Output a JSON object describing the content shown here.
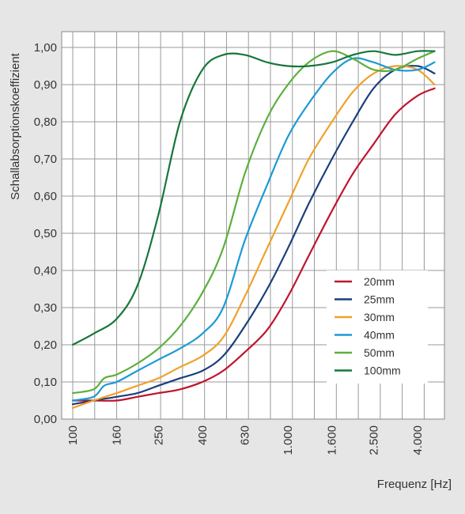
{
  "chart_data": {
    "type": "line",
    "title": "",
    "xlabel": "Frequenz [Hz]",
    "ylabel": "Schallabsorptionskoeffizient",
    "x_scale": "log",
    "xlim": [
      100,
      5000
    ],
    "ylim": [
      0,
      1.0
    ],
    "grid": true,
    "legend_position": "lower-right",
    "x_ticks": [
      "100",
      "160",
      "250",
      "400",
      "630",
      "1.000",
      "1.600",
      "2.500",
      "4.000"
    ],
    "x_tick_values": [
      100,
      160,
      250,
      400,
      630,
      1000,
      1600,
      2500,
      4000
    ],
    "y_ticks": [
      "0,00",
      "0,10",
      "0,20",
      "0,30",
      "0,40",
      "0,50",
      "0,60",
      "0,70",
      "0,80",
      "0,90",
      "1,00"
    ],
    "y_tick_values": [
      0,
      0.1,
      0.2,
      0.3,
      0.4,
      0.5,
      0.6,
      0.7,
      0.8,
      0.9,
      1.0
    ],
    "series": [
      {
        "name": "20mm",
        "color": "#c0142e",
        "points": [
          [
            100,
            0.05
          ],
          [
            125,
            0.05
          ],
          [
            160,
            0.05
          ],
          [
            200,
            0.06
          ],
          [
            250,
            0.07
          ],
          [
            315,
            0.08
          ],
          [
            400,
            0.1
          ],
          [
            500,
            0.13
          ],
          [
            630,
            0.18
          ],
          [
            800,
            0.24
          ],
          [
            1000,
            0.33
          ],
          [
            1250,
            0.44
          ],
          [
            1600,
            0.56
          ],
          [
            2000,
            0.66
          ],
          [
            2500,
            0.74
          ],
          [
            3150,
            0.82
          ],
          [
            4000,
            0.87
          ],
          [
            4800,
            0.89
          ]
        ]
      },
      {
        "name": "25mm",
        "color": "#1a3f7d",
        "points": [
          [
            100,
            0.04
          ],
          [
            125,
            0.05
          ],
          [
            160,
            0.06
          ],
          [
            200,
            0.07
          ],
          [
            250,
            0.09
          ],
          [
            315,
            0.11
          ],
          [
            400,
            0.13
          ],
          [
            500,
            0.17
          ],
          [
            630,
            0.25
          ],
          [
            800,
            0.35
          ],
          [
            1000,
            0.46
          ],
          [
            1250,
            0.58
          ],
          [
            1600,
            0.7
          ],
          [
            2000,
            0.8
          ],
          [
            2500,
            0.89
          ],
          [
            3150,
            0.94
          ],
          [
            4000,
            0.95
          ],
          [
            4800,
            0.93
          ]
        ]
      },
      {
        "name": "30mm",
        "color": "#f0a12b",
        "points": [
          [
            100,
            0.03
          ],
          [
            125,
            0.05
          ],
          [
            160,
            0.07
          ],
          [
            200,
            0.09
          ],
          [
            250,
            0.11
          ],
          [
            315,
            0.14
          ],
          [
            400,
            0.17
          ],
          [
            500,
            0.22
          ],
          [
            630,
            0.33
          ],
          [
            800,
            0.46
          ],
          [
            1000,
            0.58
          ],
          [
            1250,
            0.7
          ],
          [
            1600,
            0.8
          ],
          [
            2000,
            0.88
          ],
          [
            2500,
            0.93
          ],
          [
            3150,
            0.95
          ],
          [
            4000,
            0.94
          ],
          [
            4800,
            0.9
          ]
        ]
      },
      {
        "name": "40mm",
        "color": "#1c9ad6",
        "points": [
          [
            100,
            0.05
          ],
          [
            125,
            0.06
          ],
          [
            140,
            0.09
          ],
          [
            160,
            0.1
          ],
          [
            200,
            0.13
          ],
          [
            250,
            0.16
          ],
          [
            315,
            0.19
          ],
          [
            400,
            0.23
          ],
          [
            500,
            0.3
          ],
          [
            630,
            0.48
          ],
          [
            800,
            0.63
          ],
          [
            1000,
            0.76
          ],
          [
            1250,
            0.85
          ],
          [
            1600,
            0.93
          ],
          [
            2000,
            0.97
          ],
          [
            2500,
            0.96
          ],
          [
            3150,
            0.94
          ],
          [
            4000,
            0.94
          ],
          [
            4800,
            0.96
          ]
        ]
      },
      {
        "name": "50mm",
        "color": "#5caf3c",
        "points": [
          [
            100,
            0.07
          ],
          [
            125,
            0.08
          ],
          [
            140,
            0.11
          ],
          [
            160,
            0.12
          ],
          [
            200,
            0.15
          ],
          [
            250,
            0.19
          ],
          [
            315,
            0.25
          ],
          [
            400,
            0.34
          ],
          [
            500,
            0.46
          ],
          [
            630,
            0.66
          ],
          [
            800,
            0.81
          ],
          [
            1000,
            0.9
          ],
          [
            1250,
            0.96
          ],
          [
            1600,
            0.99
          ],
          [
            2000,
            0.97
          ],
          [
            2500,
            0.94
          ],
          [
            3150,
            0.94
          ],
          [
            4000,
            0.97
          ],
          [
            4800,
            0.99
          ]
        ]
      },
      {
        "name": "100mm",
        "color": "#17763c",
        "points": [
          [
            100,
            0.2
          ],
          [
            125,
            0.23
          ],
          [
            160,
            0.27
          ],
          [
            200,
            0.36
          ],
          [
            250,
            0.55
          ],
          [
            315,
            0.8
          ],
          [
            400,
            0.94
          ],
          [
            500,
            0.98
          ],
          [
            630,
            0.98
          ],
          [
            800,
            0.96
          ],
          [
            1000,
            0.95
          ],
          [
            1250,
            0.95
          ],
          [
            1600,
            0.96
          ],
          [
            2000,
            0.98
          ],
          [
            2500,
            0.99
          ],
          [
            3150,
            0.98
          ],
          [
            4000,
            0.99
          ],
          [
            4800,
            0.99
          ]
        ]
      }
    ]
  }
}
